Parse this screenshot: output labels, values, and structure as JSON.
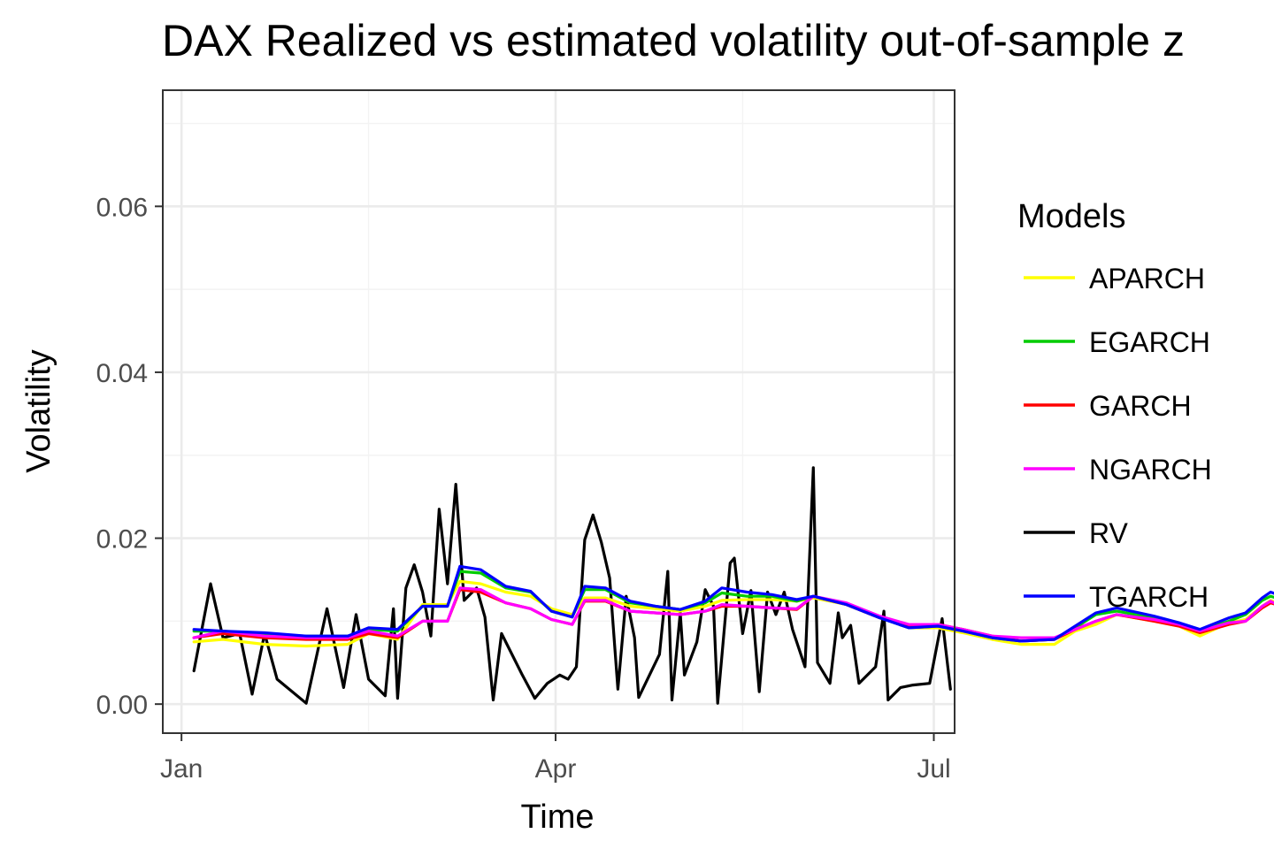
{
  "chart_data": {
    "type": "line",
    "title": "DAX Realized vs estimated volatility out-of-sample z",
    "xlabel": "Time",
    "ylabel": "Volatility",
    "x_ticks": [
      "Jan",
      "Apr",
      "Jul"
    ],
    "y_ticks": [
      "0.00",
      "0.02",
      "0.04",
      "0.06"
    ],
    "ylim": [
      -0.0035,
      0.074
    ],
    "xlim_days": [
      -4.5,
      186
    ],
    "grid": true,
    "legend": {
      "title": "Models",
      "position": "right"
    },
    "series": [
      {
        "name": "RV",
        "color": "#000000",
        "points": [
          [
            3,
            0.004
          ],
          [
            7,
            0.0145
          ],
          [
            10,
            0.008
          ],
          [
            14,
            0.0085
          ],
          [
            17,
            0.0012
          ],
          [
            20,
            0.0085
          ],
          [
            23,
            0.003
          ],
          [
            30,
            0.0001
          ],
          [
            35,
            0.0115
          ],
          [
            39,
            0.002
          ],
          [
            42,
            0.0108
          ],
          [
            45,
            0.003
          ],
          [
            49,
            0.001
          ],
          [
            51,
            0.0115
          ],
          [
            52,
            0.0007
          ],
          [
            54,
            0.014
          ],
          [
            56,
            0.0168
          ],
          [
            58,
            0.0135
          ],
          [
            60,
            0.0082
          ],
          [
            62,
            0.0235
          ],
          [
            64,
            0.0145
          ],
          [
            66,
            0.0265
          ],
          [
            68,
            0.0125
          ],
          [
            70,
            0.0135
          ],
          [
            71,
            0.014
          ],
          [
            73,
            0.0105
          ],
          [
            75,
            0.0005
          ],
          [
            77,
            0.0085
          ],
          [
            82,
            0.0035
          ],
          [
            85,
            0.0007
          ],
          [
            88,
            0.0025
          ],
          [
            91,
            0.0035
          ],
          [
            93,
            0.003
          ],
          [
            95,
            0.0045
          ],
          [
            97,
            0.0198
          ],
          [
            99,
            0.0228
          ],
          [
            101,
            0.0195
          ],
          [
            103,
            0.0152
          ],
          [
            105,
            0.0018
          ],
          [
            107,
            0.013
          ],
          [
            109,
            0.008
          ],
          [
            110,
            0.0008
          ],
          [
            115,
            0.006
          ],
          [
            117,
            0.016
          ],
          [
            118,
            0.0005
          ],
          [
            120,
            0.011
          ],
          [
            121,
            0.0035
          ],
          [
            124,
            0.0075
          ],
          [
            126,
            0.0138
          ],
          [
            128,
            0.0118
          ],
          [
            129,
            0.0001
          ],
          [
            132,
            0.017
          ],
          [
            133,
            0.0176
          ],
          [
            135,
            0.0085
          ],
          [
            137,
            0.0137
          ],
          [
            139,
            0.0015
          ],
          [
            141,
            0.0135
          ],
          [
            143,
            0.0108
          ],
          [
            145,
            0.0135
          ],
          [
            147,
            0.009
          ],
          [
            150,
            0.0045
          ],
          [
            152,
            0.0285
          ],
          [
            153,
            0.005
          ],
          [
            156,
            0.0025
          ],
          [
            158,
            0.011
          ],
          [
            159,
            0.008
          ],
          [
            161,
            0.0095
          ],
          [
            163,
            0.0025
          ],
          [
            167,
            0.0045
          ],
          [
            169,
            0.0112
          ],
          [
            170,
            0.0005
          ],
          [
            173,
            0.002
          ],
          [
            176,
            0.0023
          ],
          [
            180,
            0.0025
          ],
          [
            183,
            0.0103
          ],
          [
            185,
            0.0018
          ]
        ]
      },
      {
        "name": "APARCH",
        "color": "#ffff00",
        "points": [
          [
            3,
            0.0075
          ],
          [
            10,
            0.0078
          ],
          [
            20,
            0.0072
          ],
          [
            30,
            0.007
          ],
          [
            40,
            0.0072
          ],
          [
            45,
            0.0085
          ],
          [
            52,
            0.0078
          ],
          [
            58,
            0.012
          ],
          [
            64,
            0.012
          ],
          [
            67,
            0.0148
          ],
          [
            72,
            0.0145
          ],
          [
            78,
            0.0135
          ],
          [
            84,
            0.013
          ],
          [
            89,
            0.0115
          ],
          [
            94,
            0.0108
          ],
          [
            97,
            0.0128
          ],
          [
            102,
            0.0128
          ],
          [
            108,
            0.0118
          ],
          [
            114,
            0.0115
          ],
          [
            120,
            0.0112
          ],
          [
            126,
            0.0118
          ],
          [
            130,
            0.0125
          ],
          [
            136,
            0.0126
          ],
          [
            142,
            0.0126
          ],
          [
            148,
            0.0124
          ],
          [
            152,
            0.0128
          ],
          [
            160,
            0.012
          ],
          [
            168,
            0.0105
          ],
          [
            175,
            0.0092
          ],
          [
            182,
            0.0092
          ],
          [
            188,
            0.0086
          ],
          [
            195,
            0.0078
          ],
          [
            202,
            0.0072
          ],
          [
            210,
            0.0072
          ],
          [
            215,
            0.0088
          ],
          [
            220,
            0.0096
          ],
          [
            225,
            0.0108
          ],
          [
            234,
            0.01
          ],
          [
            240,
            0.0094
          ],
          [
            245,
            0.0082
          ],
          [
            252,
            0.0098
          ],
          [
            256,
            0.0102
          ],
          [
            260,
            0.0118
          ],
          [
            262,
            0.0125
          ],
          [
            266,
            0.0118
          ],
          [
            269,
            0.0125
          ]
        ]
      },
      {
        "name": "EGARCH",
        "color": "#00cc00",
        "points": [
          [
            3,
            0.0088
          ],
          [
            10,
            0.0088
          ],
          [
            20,
            0.0084
          ],
          [
            30,
            0.0082
          ],
          [
            40,
            0.0082
          ],
          [
            45,
            0.009
          ],
          [
            52,
            0.0088
          ],
          [
            58,
            0.0118
          ],
          [
            64,
            0.0118
          ],
          [
            67,
            0.016
          ],
          [
            72,
            0.0158
          ],
          [
            78,
            0.014
          ],
          [
            84,
            0.0135
          ],
          [
            89,
            0.0112
          ],
          [
            94,
            0.0105
          ],
          [
            97,
            0.0138
          ],
          [
            102,
            0.0138
          ],
          [
            108,
            0.0122
          ],
          [
            114,
            0.0118
          ],
          [
            120,
            0.0114
          ],
          [
            126,
            0.0122
          ],
          [
            130,
            0.0134
          ],
          [
            136,
            0.013
          ],
          [
            142,
            0.013
          ],
          [
            148,
            0.0124
          ],
          [
            152,
            0.013
          ],
          [
            160,
            0.012
          ],
          [
            168,
            0.0104
          ],
          [
            175,
            0.0092
          ],
          [
            182,
            0.0094
          ],
          [
            188,
            0.0088
          ],
          [
            195,
            0.008
          ],
          [
            202,
            0.0076
          ],
          [
            210,
            0.0078
          ],
          [
            215,
            0.0092
          ],
          [
            220,
            0.0108
          ],
          [
            225,
            0.0112
          ],
          [
            234,
            0.0104
          ],
          [
            240,
            0.0098
          ],
          [
            245,
            0.0088
          ],
          [
            252,
            0.01
          ],
          [
            256,
            0.0108
          ],
          [
            260,
            0.0125
          ],
          [
            262,
            0.013
          ],
          [
            266,
            0.0124
          ],
          [
            269,
            0.0132
          ]
        ]
      },
      {
        "name": "GARCH",
        "color": "#ff0000",
        "points": [
          [
            3,
            0.008
          ],
          [
            10,
            0.0085
          ],
          [
            20,
            0.008
          ],
          [
            30,
            0.0078
          ],
          [
            40,
            0.0078
          ],
          [
            45,
            0.0085
          ],
          [
            52,
            0.008
          ],
          [
            58,
            0.01
          ],
          [
            64,
            0.01
          ],
          [
            67,
            0.0138
          ],
          [
            72,
            0.0135
          ],
          [
            78,
            0.0122
          ],
          [
            84,
            0.0115
          ],
          [
            89,
            0.0102
          ],
          [
            94,
            0.0096
          ],
          [
            97,
            0.0124
          ],
          [
            102,
            0.0124
          ],
          [
            108,
            0.0112
          ],
          [
            114,
            0.011
          ],
          [
            120,
            0.0108
          ],
          [
            126,
            0.0112
          ],
          [
            130,
            0.0118
          ],
          [
            136,
            0.0118
          ],
          [
            142,
            0.0116
          ],
          [
            148,
            0.0114
          ],
          [
            152,
            0.013
          ],
          [
            160,
            0.012
          ],
          [
            168,
            0.0104
          ],
          [
            175,
            0.0094
          ],
          [
            182,
            0.0096
          ],
          [
            188,
            0.009
          ],
          [
            195,
            0.0082
          ],
          [
            202,
            0.0076
          ],
          [
            210,
            0.0078
          ],
          [
            215,
            0.009
          ],
          [
            220,
            0.01
          ],
          [
            225,
            0.0108
          ],
          [
            234,
            0.01
          ],
          [
            240,
            0.0094
          ],
          [
            245,
            0.0086
          ],
          [
            252,
            0.0096
          ],
          [
            256,
            0.01
          ],
          [
            260,
            0.0116
          ],
          [
            262,
            0.0122
          ],
          [
            266,
            0.0116
          ],
          [
            269,
            0.012
          ]
        ]
      },
      {
        "name": "NGARCH",
        "color": "#ff00ff",
        "points": [
          [
            3,
            0.008
          ],
          [
            10,
            0.0088
          ],
          [
            20,
            0.0082
          ],
          [
            30,
            0.008
          ],
          [
            40,
            0.008
          ],
          [
            45,
            0.0088
          ],
          [
            52,
            0.0082
          ],
          [
            58,
            0.01
          ],
          [
            64,
            0.01
          ],
          [
            67,
            0.014
          ],
          [
            72,
            0.0138
          ],
          [
            78,
            0.0122
          ],
          [
            84,
            0.0115
          ],
          [
            89,
            0.0102
          ],
          [
            94,
            0.0096
          ],
          [
            97,
            0.0125
          ],
          [
            102,
            0.0125
          ],
          [
            108,
            0.0112
          ],
          [
            114,
            0.011
          ],
          [
            120,
            0.0108
          ],
          [
            126,
            0.0112
          ],
          [
            130,
            0.012
          ],
          [
            136,
            0.0118
          ],
          [
            142,
            0.0116
          ],
          [
            148,
            0.0115
          ],
          [
            152,
            0.013
          ],
          [
            160,
            0.0122
          ],
          [
            168,
            0.0106
          ],
          [
            175,
            0.0096
          ],
          [
            182,
            0.0096
          ],
          [
            188,
            0.009
          ],
          [
            195,
            0.0082
          ],
          [
            202,
            0.008
          ],
          [
            210,
            0.008
          ],
          [
            215,
            0.009
          ],
          [
            220,
            0.01
          ],
          [
            225,
            0.0108
          ],
          [
            234,
            0.0102
          ],
          [
            240,
            0.0096
          ],
          [
            245,
            0.0088
          ],
          [
            252,
            0.0098
          ],
          [
            256,
            0.01
          ],
          [
            260,
            0.0118
          ],
          [
            262,
            0.0124
          ],
          [
            266,
            0.0114
          ],
          [
            269,
            0.0118
          ]
        ]
      },
      {
        "name": "TGARCH",
        "color": "#0000ff",
        "points": [
          [
            3,
            0.009
          ],
          [
            10,
            0.0088
          ],
          [
            20,
            0.0086
          ],
          [
            30,
            0.0082
          ],
          [
            40,
            0.0082
          ],
          [
            45,
            0.0092
          ],
          [
            52,
            0.009
          ],
          [
            58,
            0.0118
          ],
          [
            64,
            0.0118
          ],
          [
            67,
            0.0166
          ],
          [
            72,
            0.0162
          ],
          [
            78,
            0.0142
          ],
          [
            84,
            0.0136
          ],
          [
            89,
            0.0112
          ],
          [
            94,
            0.0105
          ],
          [
            97,
            0.0142
          ],
          [
            102,
            0.014
          ],
          [
            108,
            0.0124
          ],
          [
            114,
            0.0118
          ],
          [
            120,
            0.0114
          ],
          [
            126,
            0.0124
          ],
          [
            130,
            0.014
          ],
          [
            136,
            0.0135
          ],
          [
            142,
            0.0132
          ],
          [
            148,
            0.0126
          ],
          [
            152,
            0.013
          ],
          [
            160,
            0.012
          ],
          [
            168,
            0.0104
          ],
          [
            175,
            0.0092
          ],
          [
            182,
            0.0094
          ],
          [
            188,
            0.0088
          ],
          [
            195,
            0.008
          ],
          [
            202,
            0.0076
          ],
          [
            210,
            0.0078
          ],
          [
            215,
            0.0094
          ],
          [
            220,
            0.011
          ],
          [
            225,
            0.0116
          ],
          [
            234,
            0.0106
          ],
          [
            240,
            0.0098
          ],
          [
            245,
            0.009
          ],
          [
            252,
            0.0104
          ],
          [
            256,
            0.011
          ],
          [
            260,
            0.0128
          ],
          [
            262,
            0.0135
          ],
          [
            266,
            0.0128
          ],
          [
            269,
            0.0138
          ]
        ]
      }
    ]
  }
}
